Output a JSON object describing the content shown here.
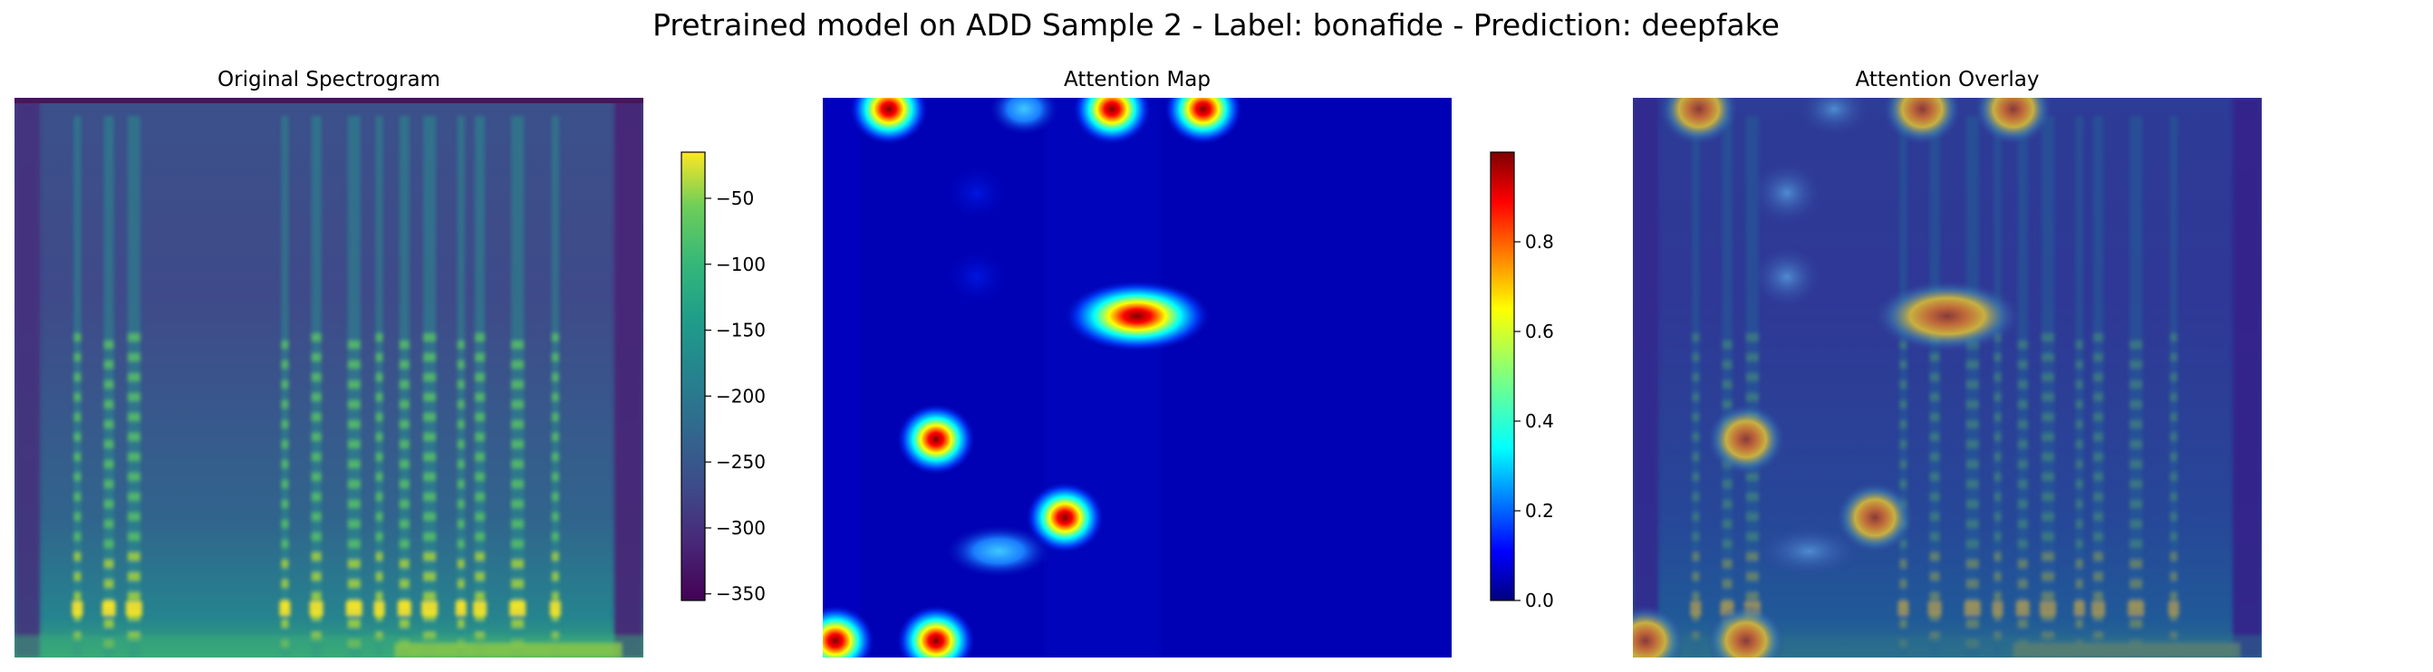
{
  "figure": {
    "suptitle": "Pretrained model on ADD Sample 2 - Label: bonafide - Prediction: deepfake"
  },
  "chart_data": [
    {
      "type": "heatmap",
      "title": "Original Spectrogram",
      "axes": "off",
      "colormap": "viridis",
      "colorbar": {
        "range": [
          -355,
          -15
        ],
        "ticks": [
          -50,
          -100,
          -150,
          -200,
          -250,
          -300,
          -350
        ],
        "tick_labels": [
          "−50",
          "−100",
          "−150",
          "−200",
          "−250",
          "−300",
          "−350"
        ]
      },
      "description_values": {
        "harmonic_band_columns": [
          0.1,
          0.15,
          0.19,
          0.43,
          0.48,
          0.54,
          0.58,
          0.62,
          0.66,
          0.71,
          0.74,
          0.8,
          0.86
        ],
        "silence_columns": [
          0.0,
          0.97
        ]
      }
    },
    {
      "type": "heatmap",
      "title": "Attention Map",
      "axes": "off",
      "colormap": "jet",
      "colorbar": {
        "range": [
          0.0,
          1.0
        ],
        "ticks": [
          0.0,
          0.2,
          0.4,
          0.6,
          0.8
        ],
        "tick_labels": [
          "0.0",
          "0.2",
          "0.4",
          "0.6",
          "0.8"
        ]
      },
      "hotspots": [
        {
          "col": 0.105,
          "row": 0.02,
          "value": 1.0
        },
        {
          "col": 0.32,
          "row": 0.02,
          "value": 0.45
        },
        {
          "col": 0.46,
          "row": 0.02,
          "value": 1.0
        },
        {
          "col": 0.605,
          "row": 0.02,
          "value": 1.0
        },
        {
          "col": 0.5,
          "row": 0.39,
          "value": 1.0,
          "span": 0.11
        },
        {
          "col": 0.18,
          "row": 0.61,
          "value": 1.0
        },
        {
          "col": 0.385,
          "row": 0.75,
          "value": 1.0
        },
        {
          "col": 0.28,
          "row": 0.81,
          "value": 0.45,
          "span": 0.06
        },
        {
          "col": 0.02,
          "row": 0.97,
          "value": 1.0
        },
        {
          "col": 0.18,
          "row": 0.97,
          "value": 1.0
        },
        {
          "col": 0.245,
          "row": 0.17,
          "value": 0.1
        },
        {
          "col": 0.245,
          "row": 0.32,
          "value": 0.1
        }
      ]
    },
    {
      "type": "heatmap",
      "title": "Attention Overlay",
      "axes": "off",
      "colormap": "jet over viridis"
    }
  ]
}
